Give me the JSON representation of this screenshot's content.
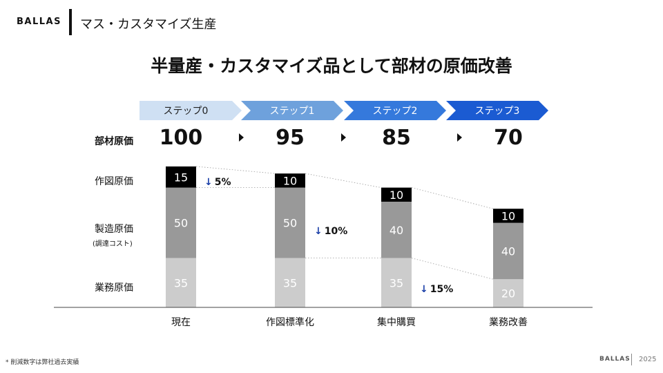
{
  "header": {
    "brand": "BALLAS",
    "section_title": "マス・カスタマイズ生産"
  },
  "main_title": "半量産・カスタマイズ品として部材の原価改善",
  "steps": [
    {
      "label": "ステップ0",
      "color": "#cfe0f3",
      "text_color": "#222222"
    },
    {
      "label": "ステップ1",
      "color": "#6ea1dc",
      "text_color": "#ffffff"
    },
    {
      "label": "ステップ2",
      "color": "#3579dc",
      "text_color": "#ffffff"
    },
    {
      "label": "ステップ3",
      "color": "#1b5bd2",
      "text_color": "#ffffff"
    }
  ],
  "row_labels": {
    "parts_cost": "部材原価",
    "design_cost": "作図原価",
    "manufacturing_cost": "製造原価",
    "manufacturing_sub": "(調達コスト)",
    "business_cost": "業務原価"
  },
  "totals": [
    "100",
    "95",
    "85",
    "70"
  ],
  "chart_data": {
    "type": "bar",
    "stacked": true,
    "categories": [
      "現在",
      "作図標準化",
      "集中購買",
      "業務改善"
    ],
    "series": [
      {
        "name": "業務原価",
        "values": [
          35,
          35,
          35,
          20
        ],
        "color": "#cccccc"
      },
      {
        "name": "製造原価",
        "values": [
          50,
          50,
          40,
          40
        ],
        "color": "#999999"
      },
      {
        "name": "作図原価",
        "values": [
          15,
          10,
          10,
          10
        ],
        "color": "#000000"
      }
    ],
    "totals": [
      100,
      95,
      85,
      70
    ],
    "annotations": [
      {
        "text": "5%",
        "arrow": "↓",
        "between": [
          0,
          1
        ],
        "series": "作図原価"
      },
      {
        "text": "10%",
        "arrow": "↓",
        "between": [
          1,
          2
        ],
        "series": "製造原価"
      },
      {
        "text": "15%",
        "arrow": "↓",
        "between": [
          2,
          3
        ],
        "series": "業務原価"
      }
    ],
    "arrow_color": "#1b3fa8"
  },
  "footnote": "* 削減数字は弊社過去実績",
  "footer": {
    "brand": "BALLAS",
    "year": "2025"
  }
}
